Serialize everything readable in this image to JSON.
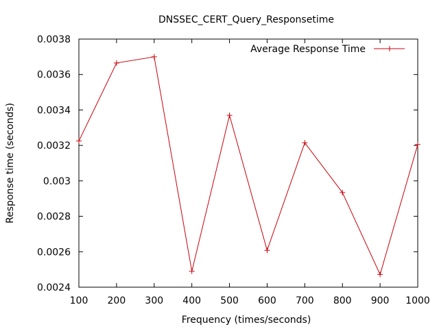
{
  "chart_data": {
    "type": "line",
    "title": "DNSSEC_CERT_Query_Responsetime",
    "xlabel": "Frequency (times/seconds)",
    "ylabel": "Response time (seconds)",
    "xlim": [
      100,
      1000
    ],
    "ylim": [
      0.0024,
      0.0038
    ],
    "x_ticks": [
      "100",
      "200",
      "300",
      "400",
      "500",
      "600",
      "700",
      "800",
      "900",
      "1000"
    ],
    "y_ticks": [
      "0.0024",
      "0.0026",
      "0.0028",
      "0.003",
      "0.0032",
      "0.0034",
      "0.0036",
      "0.0038"
    ],
    "grid": false,
    "legend_position": "top-right",
    "series": [
      {
        "name": "Average Response Time",
        "color": "#c8000a",
        "x": [
          100,
          200,
          300,
          400,
          500,
          600,
          700,
          800,
          900,
          1000
        ],
        "values": [
          0.003225,
          0.003665,
          0.0037,
          0.00249,
          0.00337,
          0.002608,
          0.003215,
          0.002934,
          0.002472,
          0.003205
        ]
      }
    ]
  }
}
